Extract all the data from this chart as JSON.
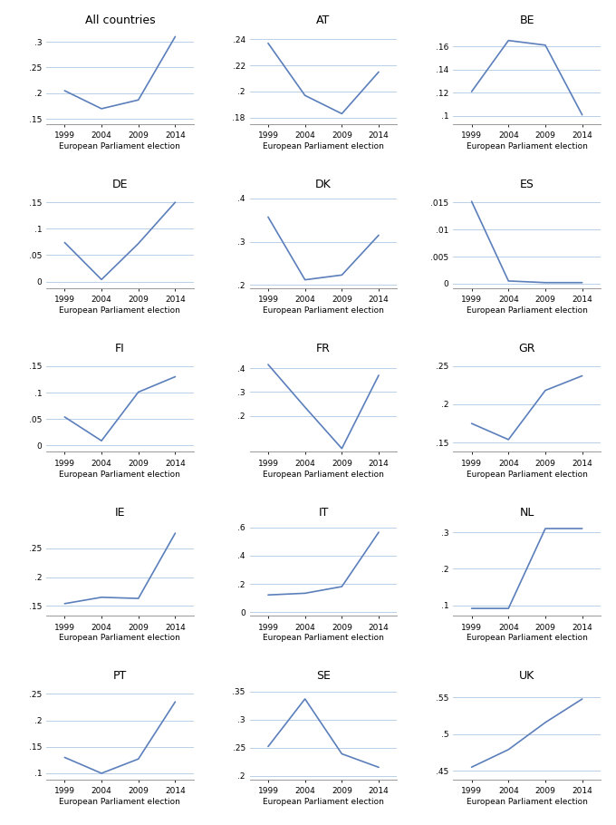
{
  "panels": [
    {
      "title": "All countries",
      "x": [
        1999,
        2004,
        2009,
        2014
      ],
      "y": [
        0.205,
        0.17,
        0.187,
        0.31
      ],
      "ylim": [
        0.14,
        0.325
      ],
      "yticks": [
        0.15,
        0.2,
        0.25,
        0.3
      ]
    },
    {
      "title": "AT",
      "x": [
        1999,
        2004,
        2009,
        2014
      ],
      "y": [
        0.237,
        0.197,
        0.183,
        0.215
      ],
      "ylim": [
        0.175,
        0.248
      ],
      "yticks": [
        0.18,
        0.2,
        0.22,
        0.24
      ]
    },
    {
      "title": "BE",
      "x": [
        1999,
        2004,
        2009,
        2014
      ],
      "y": [
        0.121,
        0.165,
        0.161,
        0.101
      ],
      "ylim": [
        0.093,
        0.175
      ],
      "yticks": [
        0.1,
        0.12,
        0.14,
        0.16
      ]
    },
    {
      "title": "DE",
      "x": [
        1999,
        2004,
        2009,
        2014
      ],
      "y": [
        0.074,
        0.004,
        0.072,
        0.15
      ],
      "ylim": [
        -0.012,
        0.168
      ],
      "yticks": [
        0.0,
        0.05,
        0.1,
        0.15
      ]
    },
    {
      "title": "DK",
      "x": [
        1999,
        2004,
        2009,
        2014
      ],
      "y": [
        0.357,
        0.212,
        0.223,
        0.315
      ],
      "ylim": [
        0.193,
        0.413
      ],
      "yticks": [
        0.2,
        0.3,
        0.4
      ]
    },
    {
      "title": "ES",
      "x": [
        1999,
        2004,
        2009,
        2014
      ],
      "y": [
        0.0152,
        0.0005,
        0.0002,
        0.0002
      ],
      "ylim": [
        -0.0008,
        0.0168
      ],
      "yticks": [
        0.0,
        0.005,
        0.01,
        0.015
      ]
    },
    {
      "title": "FI",
      "x": [
        1999,
        2004,
        2009,
        2014
      ],
      "y": [
        0.054,
        0.009,
        0.101,
        0.13
      ],
      "ylim": [
        -0.012,
        0.168
      ],
      "yticks": [
        0.0,
        0.05,
        0.1,
        0.15
      ]
    },
    {
      "title": "FR",
      "x": [
        1999,
        2004,
        2009,
        2014
      ],
      "y": [
        0.415,
        0.237,
        0.064,
        0.37
      ],
      "ylim": [
        0.05,
        0.448
      ],
      "yticks": [
        0.2,
        0.3,
        0.4
      ]
    },
    {
      "title": "GR",
      "x": [
        1999,
        2004,
        2009,
        2014
      ],
      "y": [
        0.175,
        0.154,
        0.218,
        0.237
      ],
      "ylim": [
        0.138,
        0.262
      ],
      "yticks": [
        0.15,
        0.2,
        0.25
      ]
    },
    {
      "title": "IE",
      "x": [
        1999,
        2004,
        2009,
        2014
      ],
      "y": [
        0.154,
        0.165,
        0.163,
        0.276
      ],
      "ylim": [
        0.133,
        0.298
      ],
      "yticks": [
        0.15,
        0.2,
        0.25
      ]
    },
    {
      "title": "IT",
      "x": [
        1999,
        2004,
        2009,
        2014
      ],
      "y": [
        0.122,
        0.134,
        0.181,
        0.565
      ],
      "ylim": [
        -0.025,
        0.648
      ],
      "yticks": [
        0.0,
        0.2,
        0.4,
        0.6
      ]
    },
    {
      "title": "NL",
      "x": [
        1999,
        2004,
        2009,
        2014
      ],
      "y": [
        0.092,
        0.092,
        0.31,
        0.31
      ],
      "ylim": [
        0.072,
        0.332
      ],
      "yticks": [
        0.1,
        0.2,
        0.3
      ]
    },
    {
      "title": "PT",
      "x": [
        1999,
        2004,
        2009,
        2014
      ],
      "y": [
        0.13,
        0.1,
        0.127,
        0.235
      ],
      "ylim": [
        0.088,
        0.268
      ],
      "yticks": [
        0.1,
        0.15,
        0.2,
        0.25
      ]
    },
    {
      "title": "SE",
      "x": [
        1999,
        2004,
        2009,
        2014
      ],
      "y": [
        0.252,
        0.337,
        0.239,
        0.215
      ],
      "ylim": [
        0.193,
        0.363
      ],
      "yticks": [
        0.2,
        0.25,
        0.3,
        0.35
      ]
    },
    {
      "title": "UK",
      "x": [
        1999,
        2004,
        2009,
        2014
      ],
      "y": [
        0.455,
        0.479,
        0.516,
        0.548
      ],
      "ylim": [
        0.438,
        0.568
      ],
      "yticks": [
        0.45,
        0.5,
        0.55
      ]
    }
  ],
  "xlabel": "European Parliament election",
  "line_color": "#5b7fbb",
  "line_width": 1.2,
  "bg_color": "#ffffff",
  "plot_bg_color": "#ffffff",
  "grid_color": "#b8d0e8",
  "xticks": [
    1999,
    2004,
    2009,
    2014
  ],
  "title_fontsize": 9,
  "tick_fontsize": 6.5,
  "xlabel_fontsize": 6.5
}
